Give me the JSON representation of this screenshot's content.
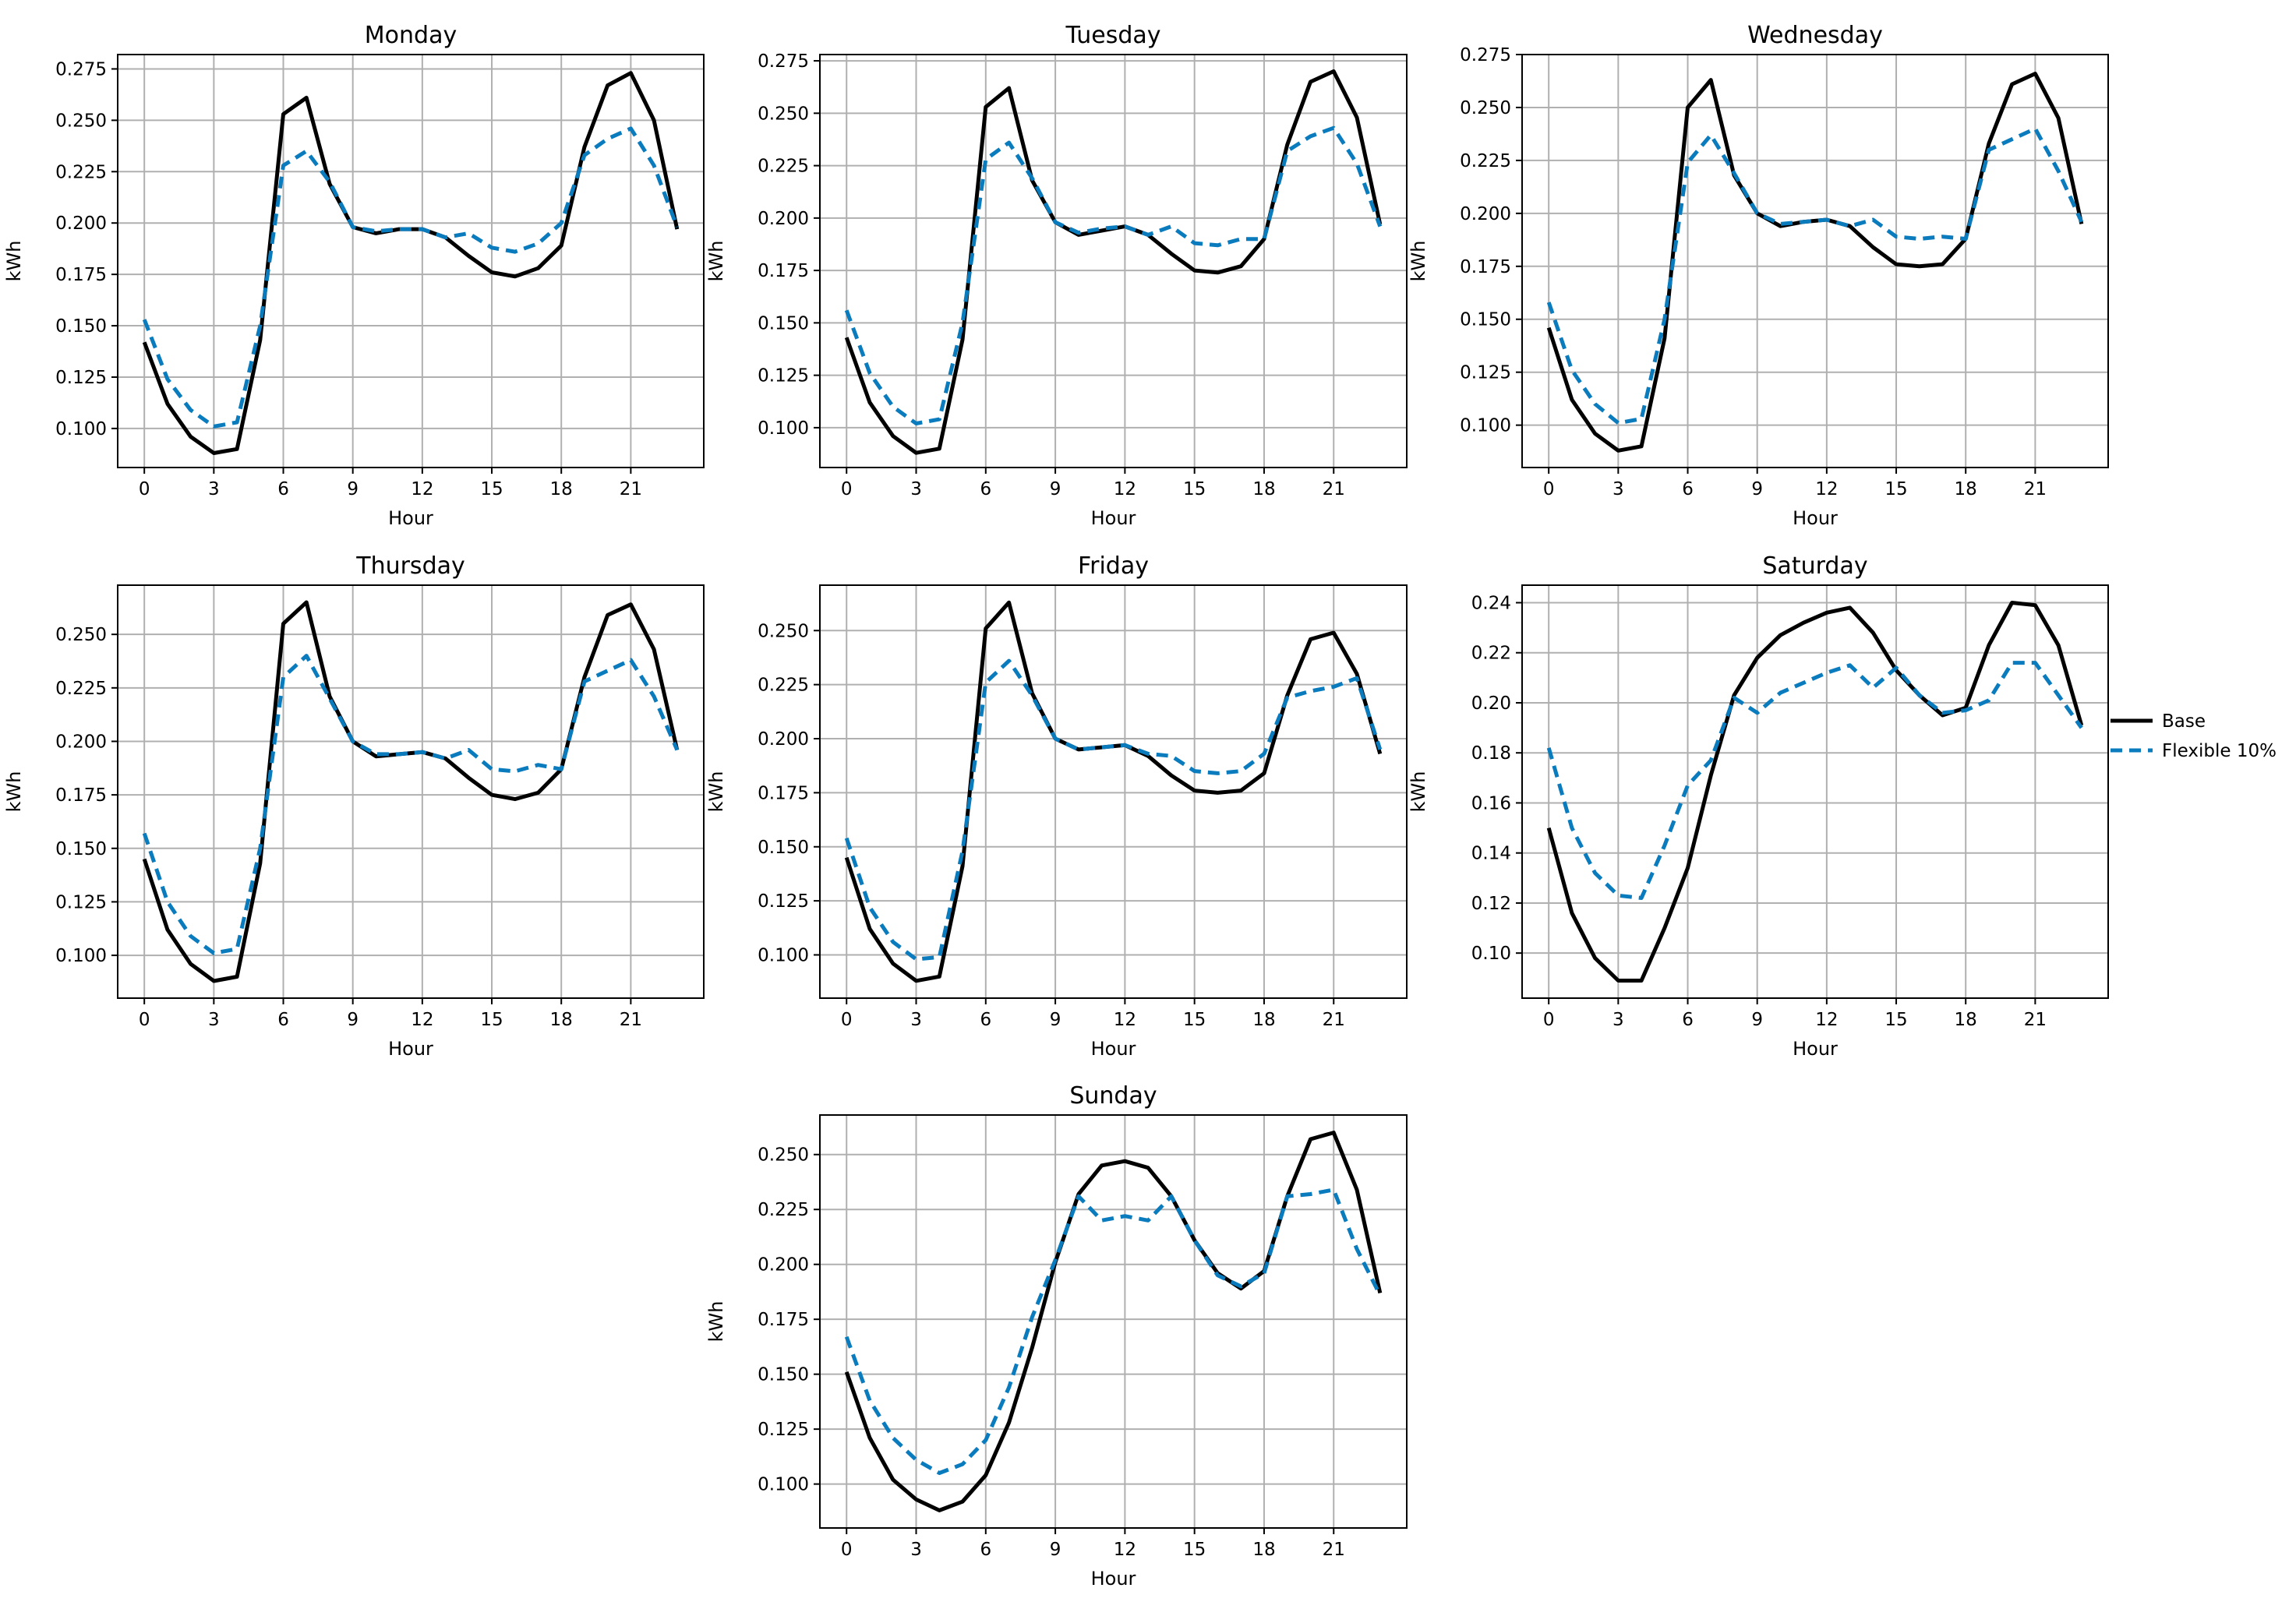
{
  "chart_data": {
    "type": "line",
    "x": [
      0,
      1,
      2,
      3,
      4,
      5,
      6,
      7,
      8,
      9,
      10,
      11,
      12,
      13,
      14,
      15,
      16,
      17,
      18,
      19,
      20,
      21,
      22,
      23
    ],
    "legend": {
      "placement": "right",
      "entries": [
        {
          "label": "Base",
          "color": "#000000",
          "style": "solid"
        },
        {
          "label": "Flexible 10%",
          "color": "#0a7bbd",
          "style": "dashed"
        }
      ]
    },
    "grid": true,
    "panels": [
      {
        "title": "Monday",
        "xlabel": "Hour",
        "ylabel": "kWh",
        "xticks": [
          "0",
          "3",
          "6",
          "9",
          "12",
          "15",
          "18",
          "21"
        ],
        "yticks": [
          "0.100",
          "0.125",
          "0.150",
          "0.175",
          "0.200",
          "0.225",
          "0.250",
          "0.275"
        ],
        "ylim": [
          0.081,
          0.282
        ],
        "series": [
          {
            "name": "Base",
            "values": [
              0.142,
              0.112,
              0.096,
              0.088,
              0.09,
              0.143,
              0.253,
              0.261,
              0.219,
              0.198,
              0.195,
              0.197,
              0.197,
              0.193,
              0.184,
              0.176,
              0.174,
              0.178,
              0.189,
              0.237,
              0.267,
              0.273,
              0.25,
              0.197
            ]
          },
          {
            "name": "Flexible 10%",
            "values": [
              0.153,
              0.124,
              0.109,
              0.101,
              0.103,
              0.15,
              0.228,
              0.235,
              0.22,
              0.198,
              0.196,
              0.197,
              0.197,
              0.193,
              0.195,
              0.188,
              0.186,
              0.19,
              0.2,
              0.233,
              0.241,
              0.246,
              0.228,
              0.198
            ]
          }
        ]
      },
      {
        "title": "Tuesday",
        "xlabel": "Hour",
        "ylabel": "kWh",
        "xticks": [
          "0",
          "3",
          "6",
          "9",
          "12",
          "15",
          "18",
          "21"
        ],
        "yticks": [
          "0.100",
          "0.125",
          "0.150",
          "0.175",
          "0.200",
          "0.225",
          "0.250",
          "0.275"
        ],
        "ylim": [
          0.081,
          0.278
        ],
        "series": [
          {
            "name": "Base",
            "values": [
              0.143,
              0.112,
              0.096,
              0.088,
              0.09,
              0.142,
              0.253,
              0.262,
              0.218,
              0.198,
              0.192,
              0.194,
              0.196,
              0.192,
              0.183,
              0.175,
              0.174,
              0.177,
              0.19,
              0.235,
              0.265,
              0.27,
              0.248,
              0.197
            ]
          },
          {
            "name": "Flexible 10%",
            "values": [
              0.156,
              0.126,
              0.11,
              0.102,
              0.104,
              0.15,
              0.228,
              0.236,
              0.219,
              0.198,
              0.193,
              0.195,
              0.196,
              0.192,
              0.196,
              0.188,
              0.187,
              0.19,
              0.19,
              0.232,
              0.239,
              0.243,
              0.226,
              0.196
            ]
          }
        ]
      },
      {
        "title": "Wednesday",
        "xlabel": "Hour",
        "ylabel": "kWh",
        "xticks": [
          "0",
          "3",
          "6",
          "9",
          "12",
          "15",
          "18",
          "21"
        ],
        "yticks": [
          "0.100",
          "0.125",
          "0.150",
          "0.175",
          "0.200",
          "0.225",
          "0.250",
          "0.275"
        ],
        "ylim": [
          0.08,
          0.275
        ],
        "series": [
          {
            "name": "Base",
            "values": [
              0.146,
              0.112,
              0.096,
              0.088,
              0.09,
              0.141,
              0.25,
              0.263,
              0.218,
              0.2,
              0.194,
              0.196,
              0.197,
              0.194,
              0.184,
              0.176,
              0.175,
              0.176,
              0.188,
              0.233,
              0.261,
              0.266,
              0.245,
              0.195
            ]
          },
          {
            "name": "Flexible 10%",
            "values": [
              0.158,
              0.126,
              0.11,
              0.101,
              0.103,
              0.15,
              0.224,
              0.237,
              0.219,
              0.2,
              0.195,
              0.196,
              0.197,
              0.194,
              0.197,
              0.189,
              0.188,
              0.189,
              0.188,
              0.23,
              0.235,
              0.24,
              0.22,
              0.196
            ]
          }
        ]
      },
      {
        "title": "Thursday",
        "xlabel": "Hour",
        "ylabel": "kWh",
        "xticks": [
          "0",
          "3",
          "6",
          "9",
          "12",
          "15",
          "18",
          "21"
        ],
        "yticks": [
          "0.100",
          "0.125",
          "0.150",
          "0.175",
          "0.200",
          "0.225",
          "0.250"
        ],
        "ylim": [
          0.08,
          0.273
        ],
        "series": [
          {
            "name": "Base",
            "values": [
              0.145,
              0.112,
              0.096,
              0.088,
              0.09,
              0.143,
              0.255,
              0.265,
              0.221,
              0.2,
              0.193,
              0.194,
              0.195,
              0.192,
              0.183,
              0.175,
              0.173,
              0.176,
              0.187,
              0.23,
              0.259,
              0.264,
              0.243,
              0.196
            ]
          },
          {
            "name": "Flexible 10%",
            "values": [
              0.157,
              0.125,
              0.109,
              0.101,
              0.103,
              0.15,
              0.23,
              0.24,
              0.22,
              0.2,
              0.194,
              0.194,
              0.195,
              0.192,
              0.196,
              0.187,
              0.186,
              0.189,
              0.187,
              0.228,
              0.233,
              0.238,
              0.221,
              0.196
            ]
          }
        ]
      },
      {
        "title": "Friday",
        "xlabel": "Hour",
        "ylabel": "kWh",
        "xticks": [
          "0",
          "3",
          "6",
          "9",
          "12",
          "15",
          "18",
          "21"
        ],
        "yticks": [
          "0.100",
          "0.125",
          "0.150",
          "0.175",
          "0.200",
          "0.225",
          "0.250"
        ],
        "ylim": [
          0.08,
          0.271
        ],
        "series": [
          {
            "name": "Base",
            "values": [
              0.145,
              0.112,
              0.096,
              0.088,
              0.09,
              0.141,
              0.251,
              0.263,
              0.221,
              0.2,
              0.195,
              0.196,
              0.197,
              0.192,
              0.183,
              0.176,
              0.175,
              0.176,
              0.184,
              0.22,
              0.246,
              0.249,
              0.23,
              0.193
            ]
          },
          {
            "name": "Flexible 10%",
            "values": [
              0.154,
              0.122,
              0.106,
              0.098,
              0.099,
              0.148,
              0.226,
              0.236,
              0.22,
              0.2,
              0.195,
              0.196,
              0.197,
              0.193,
              0.192,
              0.185,
              0.184,
              0.185,
              0.193,
              0.219,
              0.222,
              0.224,
              0.228,
              0.195
            ]
          }
        ]
      },
      {
        "title": "Saturday",
        "xlabel": "Hour",
        "ylabel": "kWh",
        "xticks": [
          "0",
          "3",
          "6",
          "9",
          "12",
          "15",
          "18",
          "21"
        ],
        "yticks": [
          "0.10",
          "0.12",
          "0.14",
          "0.16",
          "0.18",
          "0.20",
          "0.22",
          "0.24"
        ],
        "ylim": [
          0.082,
          0.247
        ],
        "series": [
          {
            "name": "Base",
            "values": [
              0.15,
              0.116,
              0.098,
              0.089,
              0.089,
              0.11,
              0.134,
              0.171,
              0.203,
              0.218,
              0.227,
              0.232,
              0.236,
              0.238,
              0.228,
              0.213,
              0.203,
              0.195,
              0.198,
              0.223,
              0.24,
              0.239,
              0.223,
              0.191
            ]
          },
          {
            "name": "Flexible 10%",
            "values": [
              0.182,
              0.15,
              0.132,
              0.123,
              0.122,
              0.143,
              0.167,
              0.177,
              0.202,
              0.196,
              0.204,
              0.208,
              0.212,
              0.215,
              0.206,
              0.214,
              0.203,
              0.196,
              0.197,
              0.201,
              0.216,
              0.216,
              0.203,
              0.19
            ]
          }
        ]
      },
      {
        "title": "Sunday",
        "xlabel": "Hour",
        "ylabel": "kWh",
        "xticks": [
          "0",
          "3",
          "6",
          "9",
          "12",
          "15",
          "18",
          "21"
        ],
        "yticks": [
          "0.100",
          "0.125",
          "0.150",
          "0.175",
          "0.200",
          "0.225",
          "0.250"
        ],
        "ylim": [
          0.08,
          0.268
        ],
        "series": [
          {
            "name": "Base",
            "values": [
              0.151,
              0.121,
              0.102,
              0.093,
              0.088,
              0.092,
              0.104,
              0.128,
              0.162,
              0.201,
              0.232,
              0.245,
              0.247,
              0.244,
              0.231,
              0.211,
              0.196,
              0.189,
              0.197,
              0.231,
              0.257,
              0.26,
              0.234,
              0.187
            ]
          },
          {
            "name": "Flexible 10%",
            "values": [
              0.167,
              0.138,
              0.121,
              0.111,
              0.105,
              0.109,
              0.12,
              0.144,
              0.176,
              0.202,
              0.231,
              0.22,
              0.222,
              0.22,
              0.231,
              0.211,
              0.195,
              0.19,
              0.196,
              0.231,
              0.232,
              0.234,
              0.207,
              0.186
            ]
          }
        ]
      }
    ]
  }
}
